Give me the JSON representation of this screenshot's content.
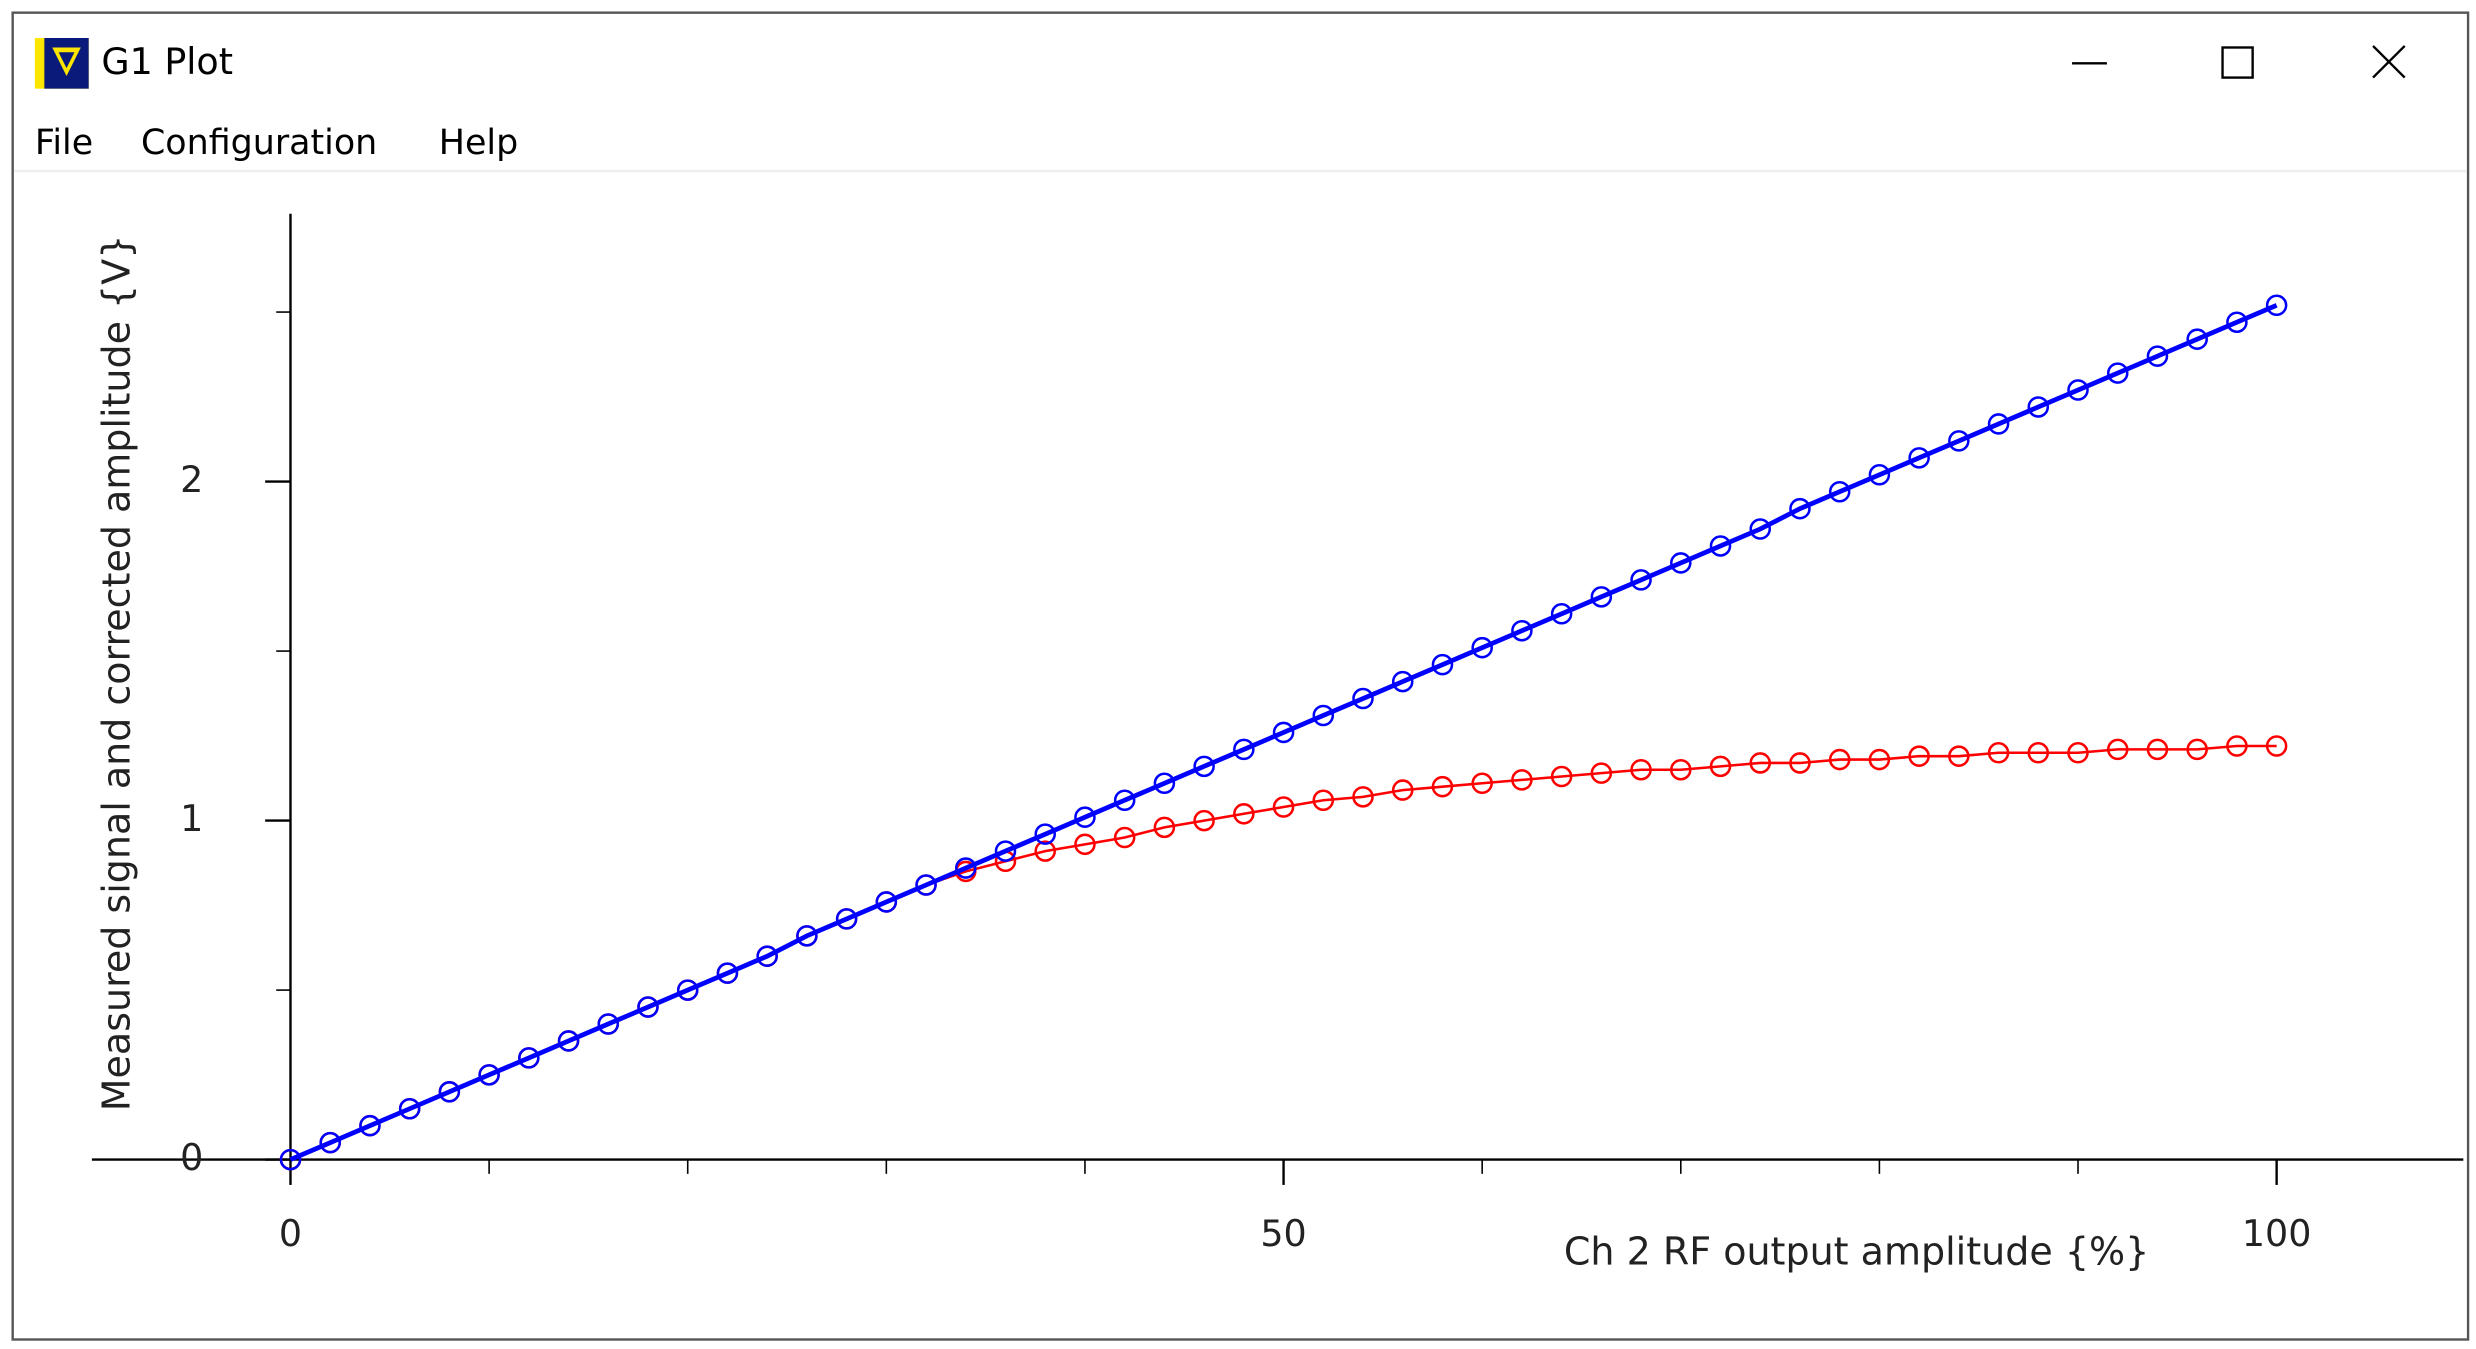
{
  "window": {
    "title": "G1 Plot"
  },
  "menu": [
    "File",
    "Configuration",
    "Help"
  ],
  "chart_data": {
    "type": "line",
    "x_label": "Ch 2 RF output amplitude {%}",
    "y_label": "Measured signal and corrected amplitude {V}",
    "x": [
      0,
      2,
      4,
      6,
      8,
      10,
      12,
      14,
      16,
      18,
      20,
      22,
      24,
      26,
      28,
      30,
      32,
      34,
      36,
      38,
      40,
      42,
      44,
      46,
      48,
      50,
      52,
      54,
      56,
      58,
      60,
      62,
      64,
      66,
      68,
      70,
      72,
      74,
      76,
      78,
      80,
      82,
      84,
      86,
      88,
      90,
      92,
      94,
      96,
      98,
      100
    ],
    "series": [
      {
        "color": "#ff0000",
        "values": [
          0,
          0.05,
          0.1,
          0.15,
          0.2,
          0.25,
          0.3,
          0.35,
          0.4,
          0.45,
          0.5,
          0.55,
          0.6,
          0.66,
          0.71,
          0.76,
          0.81,
          0.85,
          0.88,
          0.91,
          0.93,
          0.95,
          0.98,
          1.0,
          1.02,
          1.04,
          1.06,
          1.07,
          1.09,
          1.1,
          1.11,
          1.12,
          1.13,
          1.14,
          1.15,
          1.15,
          1.16,
          1.17,
          1.17,
          1.18,
          1.18,
          1.19,
          1.19,
          1.2,
          1.2,
          1.2,
          1.21,
          1.21,
          1.21,
          1.22,
          1.22
        ]
      },
      {
        "color": "#0000ff",
        "values": [
          0,
          0.05,
          0.1,
          0.15,
          0.2,
          0.25,
          0.3,
          0.35,
          0.4,
          0.45,
          0.5,
          0.55,
          0.6,
          0.66,
          0.71,
          0.76,
          0.81,
          0.86,
          0.91,
          0.96,
          1.01,
          1.06,
          1.11,
          1.16,
          1.21,
          1.26,
          1.31,
          1.36,
          1.41,
          1.46,
          1.51,
          1.56,
          1.61,
          1.66,
          1.71,
          1.76,
          1.81,
          1.86,
          1.92,
          1.97,
          2.02,
          2.07,
          2.12,
          2.17,
          2.22,
          2.27,
          2.32,
          2.37,
          2.42,
          2.47,
          2.52
        ]
      }
    ],
    "xlim": [
      -10,
      109.4
    ],
    "ylim": [
      -0.54,
      2.79
    ],
    "xticks": [
      0,
      50,
      100
    ],
    "yticks": [
      0,
      1,
      2
    ],
    "xminor_ticks": [
      10,
      20,
      30,
      40,
      60,
      70,
      80,
      90
    ],
    "yminor_ticks": [
      0.5,
      1.5,
      2.5
    ]
  }
}
